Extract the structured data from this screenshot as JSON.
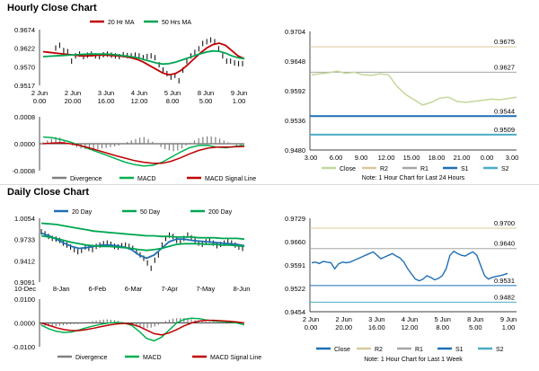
{
  "sections": {
    "hourly_title": "Hourly Close Chart",
    "daily_title": "Daily Close Chart"
  },
  "colors": {
    "ma20": "#c00000",
    "ma50": "#00a651",
    "ma200": "#00a651",
    "price": "#000000",
    "macd": "#00b050",
    "signal": "#c00000",
    "divergence": "#808080",
    "close_hourly": "#c4d79b",
    "close_weekly": "#1f6fb5",
    "r2": "#d8c99b",
    "r1": "#a6a6a6",
    "s1": "#1f6fb5",
    "s2": "#4bacc6",
    "hline": "#000000"
  },
  "chart_data": [
    {
      "id": "hourly_price",
      "type": "line",
      "title": "Hourly Close Chart",
      "legend": [
        {
          "name": "20 Hr MA",
          "key": "ma20"
        },
        {
          "name": "50 Hrs MA",
          "key": "ma50"
        }
      ],
      "y_ticks": [
        "0.9674",
        "0.9622",
        "0.9570",
        "0.9517"
      ],
      "ylim": [
        0.9517,
        0.9674
      ],
      "x_ticks": [
        [
          "2 Jun",
          "0.00"
        ],
        [
          "2 Jun",
          "20.00"
        ],
        [
          "3 Jun",
          "16.00"
        ],
        [
          "4 Jun",
          "12.00"
        ],
        [
          "5 Jun",
          "8.00"
        ],
        [
          "8 Jun",
          "5.00"
        ],
        [
          "9 Jun",
          "1.00"
        ]
      ],
      "bars": [
        0.9622,
        0.963,
        0.9615,
        0.9612,
        0.9585,
        0.96,
        0.9605,
        0.9598,
        0.9602,
        0.9605,
        0.96,
        0.9598,
        0.9603,
        0.9605,
        0.9602,
        0.96,
        0.9598,
        0.9603,
        0.9601,
        0.96,
        0.9602,
        0.96,
        0.9595,
        0.9598,
        0.96,
        0.9595,
        0.9575,
        0.956,
        0.955,
        0.954,
        0.9545,
        0.953,
        0.956,
        0.9585,
        0.96,
        0.961,
        0.962,
        0.9635,
        0.964,
        0.9645,
        0.964,
        0.962,
        0.96,
        0.9585,
        0.9585,
        0.958,
        0.9578,
        0.9578
      ],
      "series": [
        {
          "key": "ma20",
          "values": [
            0.9612,
            0.961,
            0.9608,
            0.9606,
            0.9604,
            0.9602,
            0.96,
            0.96,
            0.9601,
            0.9602,
            0.9602,
            0.9601,
            0.96,
            0.9598,
            0.9595,
            0.959,
            0.9582,
            0.9572,
            0.9562,
            0.9552,
            0.9547,
            0.955,
            0.956,
            0.9575,
            0.9592,
            0.9608,
            0.9622,
            0.9632,
            0.9636,
            0.963,
            0.9615,
            0.96,
            0.9592
          ]
        },
        {
          "key": "ma50",
          "values": [
            0.9598,
            0.9599,
            0.96,
            0.9601,
            0.9602,
            0.9603,
            0.9604,
            0.9605,
            0.9605,
            0.9605,
            0.9605,
            0.9604,
            0.9602,
            0.96,
            0.9598,
            0.9595,
            0.959,
            0.9585,
            0.958,
            0.9577,
            0.9578,
            0.9582,
            0.9588,
            0.9594,
            0.96,
            0.9606,
            0.9611,
            0.9614,
            0.9613,
            0.9608,
            0.96,
            0.9595,
            0.9592
          ]
        }
      ]
    },
    {
      "id": "hourly_macd",
      "type": "bar",
      "legend": [
        {
          "name": "Divergence",
          "key": "divergence"
        },
        {
          "name": "MACD",
          "key": "macd"
        },
        {
          "name": "MACD Signal Line",
          "key": "signal"
        }
      ],
      "y_ticks": [
        "0.0008",
        "0.0000",
        "-0.0008"
      ],
      "ylim": [
        -0.0008,
        0.0008
      ],
      "divergence": [
        5e-05,
        0.0001,
        0.00015,
        0.0002,
        0.00018,
        0.0001,
        2e-05,
        -5e-05,
        -0.0001,
        -0.00014,
        -0.00016,
        -0.00018,
        -0.00018,
        -0.00016,
        -0.00014,
        -0.00012,
        -0.0001,
        -8e-05,
        -5e-05,
        0.0,
        5e-05,
        0.0001,
        0.00014,
        0.00018,
        0.0002,
        0.00014,
        6e-05,
        -2e-05,
        -0.0001,
        -0.00016,
        -0.0002,
        -0.00022,
        -0.0002,
        -0.00014,
        -5e-05,
        3e-05,
        0.0001,
        0.00016,
        0.0002,
        0.00022,
        0.00022,
        0.0002,
        0.00015,
        0.0001,
        4e-05,
        -2e-05,
        -6e-05,
        -0.0001
      ],
      "series": [
        {
          "key": "macd",
          "values": [
            0.0002,
            0.00018,
            0.00012,
            5e-05,
            -5e-05,
            -0.00015,
            -0.00025,
            -0.00035,
            -0.00045,
            -0.00055,
            -0.00062,
            -0.00066,
            -0.00064,
            -0.00055,
            -0.0004,
            -0.00025,
            -0.00012,
            -5e-05,
            -5e-05,
            -0.0001,
            -0.00012,
            -8e-05,
            -5e-05
          ]
        },
        {
          "key": "signal",
          "values": [
            0.0,
            2e-05,
            3e-05,
            0.0,
            -5e-05,
            -0.00012,
            -0.0002,
            -0.00028,
            -0.00036,
            -0.00043,
            -0.0005,
            -0.00055,
            -0.00058,
            -0.00058,
            -0.00052,
            -0.00042,
            -0.0003,
            -0.0002,
            -0.00013,
            -0.0001,
            -0.0001,
            -9e-05,
            -8e-05
          ]
        }
      ]
    },
    {
      "id": "hourly_pivot",
      "type": "line",
      "legend": [
        {
          "name": "Close",
          "key": "close_hourly"
        },
        {
          "name": "R2",
          "key": "r2"
        },
        {
          "name": "R1",
          "key": "r1"
        },
        {
          "name": "S1",
          "key": "s1"
        },
        {
          "name": "S2",
          "key": "s2"
        }
      ],
      "y_ticks": [
        "0.9704",
        "0.9648",
        "0.9592",
        "0.9536",
        "0.9480"
      ],
      "ylim": [
        0.948,
        0.9704
      ],
      "x_ticks": [
        "3.00",
        "6.00",
        "9.00",
        "12.00",
        "15.00",
        "18.00",
        "21.00",
        "0.00",
        "3.00"
      ],
      "levels": [
        {
          "key": "r2",
          "value": 0.9675,
          "label": "0.9675",
          "width": 1
        },
        {
          "key": "r1",
          "value": 0.9627,
          "label": "0.9627",
          "width": 1
        },
        {
          "key": "s1",
          "value": 0.9544,
          "label": "0.9544",
          "width": 2
        },
        {
          "key": "s2",
          "value": 0.9509,
          "label": "0.9509",
          "width": 2
        }
      ],
      "close": [
        0.9622,
        0.9624,
        0.9626,
        0.9629,
        0.9625,
        0.9627,
        0.9622,
        0.9621,
        0.9624,
        0.9622,
        0.96,
        0.9585,
        0.9575,
        0.9565,
        0.957,
        0.9578,
        0.958,
        0.9572,
        0.957,
        0.9572,
        0.9574,
        0.9576,
        0.9575,
        0.9577,
        0.958
      ],
      "note": "Note: 1 Hour Chart for Last 24 Hours"
    },
    {
      "id": "daily_price",
      "type": "line",
      "title": "Daily Close Chart",
      "legend": [
        {
          "name": "20 Day",
          "key": "ma20_daily"
        },
        {
          "name": "50 Day",
          "key": "ma50"
        },
        {
          "name": "200 Day",
          "key": "ma200"
        }
      ],
      "y_ticks": [
        "1.0054",
        "0.9733",
        "0.9412",
        "0.9091"
      ],
      "ylim": [
        0.9091,
        1.0054
      ],
      "x_ticks": [
        "10-Dec",
        "8-Jan",
        "6-Feb",
        "6-Mar",
        "7-Apr",
        "7-May",
        "8-Jun"
      ],
      "bars": [
        0.985,
        0.982,
        0.978,
        0.975,
        0.974,
        0.972,
        0.968,
        0.965,
        0.962,
        0.958,
        0.955,
        0.957,
        0.962,
        0.96,
        0.958,
        0.963,
        0.965,
        0.967,
        0.968,
        0.966,
        0.963,
        0.962,
        0.964,
        0.965,
        0.963,
        0.96,
        0.955,
        0.95,
        0.945,
        0.938,
        0.93,
        0.942,
        0.95,
        0.965,
        0.975,
        0.98,
        0.978,
        0.972,
        0.97,
        0.975,
        0.98,
        0.976,
        0.972,
        0.968,
        0.966,
        0.97,
        0.972,
        0.968,
        0.964,
        0.966,
        0.968,
        0.97,
        0.968,
        0.965,
        0.962,
        0.96
      ],
      "series": [
        {
          "key": "ma20_daily",
          "values": [
            0.983,
            0.979,
            0.974,
            0.968,
            0.963,
            0.96,
            0.961,
            0.963,
            0.965,
            0.965,
            0.964,
            0.962,
            0.958,
            0.95,
            0.945,
            0.95,
            0.96,
            0.97,
            0.974,
            0.974,
            0.972,
            0.971,
            0.97,
            0.969,
            0.968,
            0.967,
            0.966,
            0.964
          ]
        },
        {
          "key": "ma50",
          "values": [
            0.979,
            0.977,
            0.975,
            0.972,
            0.969,
            0.967,
            0.965,
            0.964,
            0.963,
            0.963,
            0.962,
            0.961,
            0.96,
            0.958,
            0.957,
            0.958,
            0.96,
            0.963,
            0.966,
            0.967,
            0.967,
            0.967,
            0.966,
            0.966,
            0.965,
            0.965,
            0.964,
            0.963
          ]
        },
        {
          "key": "ma200",
          "values": [
            0.998,
            0.997,
            0.996,
            0.994,
            0.992,
            0.99,
            0.988,
            0.986,
            0.985,
            0.984,
            0.983,
            0.982,
            0.981,
            0.98,
            0.979,
            0.979,
            0.978,
            0.978,
            0.977,
            0.977,
            0.977,
            0.976,
            0.976,
            0.976,
            0.975,
            0.975,
            0.975,
            0.974
          ]
        }
      ]
    },
    {
      "id": "daily_macd",
      "type": "bar",
      "legend": [
        {
          "name": "Divergence",
          "key": "divergence"
        },
        {
          "name": "MACD",
          "key": "macd"
        },
        {
          "name": "MACD Signal Line",
          "key": "signal"
        }
      ],
      "y_ticks": [
        "0.0100",
        "0.0000",
        "-0.0100"
      ],
      "ylim": [
        -0.01,
        0.01
      ],
      "divergence": [
        -0.001,
        -0.0012,
        -0.0014,
        -0.0015,
        -0.0014,
        -0.0012,
        -0.001,
        -0.0008,
        -0.0006,
        -0.0005,
        -0.0004,
        -0.0003,
        0.0,
        0.0004,
        0.0008,
        0.001,
        0.0012,
        0.0014,
        0.0015,
        0.0014,
        0.0012,
        0.0009,
        0.0005,
        0.0,
        -0.0005,
        -0.001,
        -0.0015,
        -0.0018,
        -0.002,
        -0.0022,
        -0.002,
        -0.0015,
        -0.0008,
        0.0,
        0.0008,
        0.0014,
        0.0018,
        0.002,
        0.0021,
        0.002,
        0.0018,
        0.0015,
        0.0012,
        0.001,
        0.0008,
        0.0006,
        0.0005,
        0.0004,
        0.0003,
        0.0003,
        0.0002,
        0.0001,
        0.0,
        -0.0001,
        -0.0002,
        -0.0003
      ],
      "series": [
        {
          "key": "macd",
          "values": [
            -0.001,
            -0.0025,
            -0.0035,
            -0.004,
            -0.0038,
            -0.003,
            -0.002,
            -0.0012,
            -0.0005,
            0.0,
            0.0002,
            0.0,
            -0.001,
            -0.0035,
            -0.0065,
            -0.0075,
            -0.006,
            -0.003,
            0.0,
            0.0015,
            0.002,
            0.0018,
            0.0012,
            0.0008,
            0.0006,
            0.0004,
            0.0,
            -0.0008
          ]
        },
        {
          "key": "signal",
          "values": [
            0.0,
            -0.001,
            -0.002,
            -0.0028,
            -0.0032,
            -0.0032,
            -0.0028,
            -0.0022,
            -0.0015,
            -0.0009,
            -0.0004,
            -0.0002,
            -0.0005,
            -0.0015,
            -0.003,
            -0.0045,
            -0.005,
            -0.0042,
            -0.0028,
            -0.0012,
            0.0,
            0.0008,
            0.0011,
            0.0011,
            0.0009,
            0.0007,
            0.0004,
            0.0
          ]
        }
      ]
    },
    {
      "id": "weekly_pivot",
      "type": "line",
      "legend": [
        {
          "name": "Close",
          "key": "close_weekly"
        },
        {
          "name": "R2",
          "key": "r2"
        },
        {
          "name": "R1",
          "key": "r1"
        },
        {
          "name": "S1",
          "key": "s1"
        },
        {
          "name": "S2",
          "key": "s2"
        }
      ],
      "y_ticks": [
        "0.9729",
        "0.9660",
        "0.9591",
        "0.9522",
        "0.9454"
      ],
      "ylim": [
        0.9454,
        0.9729
      ],
      "x_ticks": [
        [
          "2 Jun",
          "0.00"
        ],
        [
          "2 Jun",
          "20.00"
        ],
        [
          "3 Jun",
          "16.00"
        ],
        [
          "4 Jun",
          "12.00"
        ],
        [
          "5 Jun",
          "8.00"
        ],
        [
          "8 Jun",
          "5.00"
        ],
        [
          "9 Jun",
          "1.00"
        ]
      ],
      "levels": [
        {
          "key": "r2",
          "value": 0.97,
          "label": "0.9700",
          "width": 1
        },
        {
          "key": "r1",
          "value": 0.964,
          "label": "0.9640",
          "width": 1
        },
        {
          "key": "s1",
          "value": 0.9531,
          "label": "0.9531",
          "width": 1
        },
        {
          "key": "s2",
          "value": 0.9482,
          "label": "0.9482",
          "width": 1
        }
      ],
      "close": [
        0.9598,
        0.96,
        0.9596,
        0.9602,
        0.96,
        0.9598,
        0.958,
        0.9595,
        0.96,
        0.9598,
        0.96,
        0.9605,
        0.961,
        0.9615,
        0.962,
        0.9625,
        0.963,
        0.962,
        0.961,
        0.9615,
        0.962,
        0.9625,
        0.9618,
        0.9612,
        0.96,
        0.958,
        0.9565,
        0.955,
        0.9545,
        0.955,
        0.956,
        0.9555,
        0.9548,
        0.9552,
        0.956,
        0.958,
        0.962,
        0.9632,
        0.9625,
        0.962,
        0.9618,
        0.9625,
        0.963,
        0.962,
        0.959,
        0.956,
        0.955,
        0.9555,
        0.9558,
        0.956,
        0.9563,
        0.9567
      ],
      "note": "Note: 1 Hour Chart for Last 1 Week"
    }
  ]
}
